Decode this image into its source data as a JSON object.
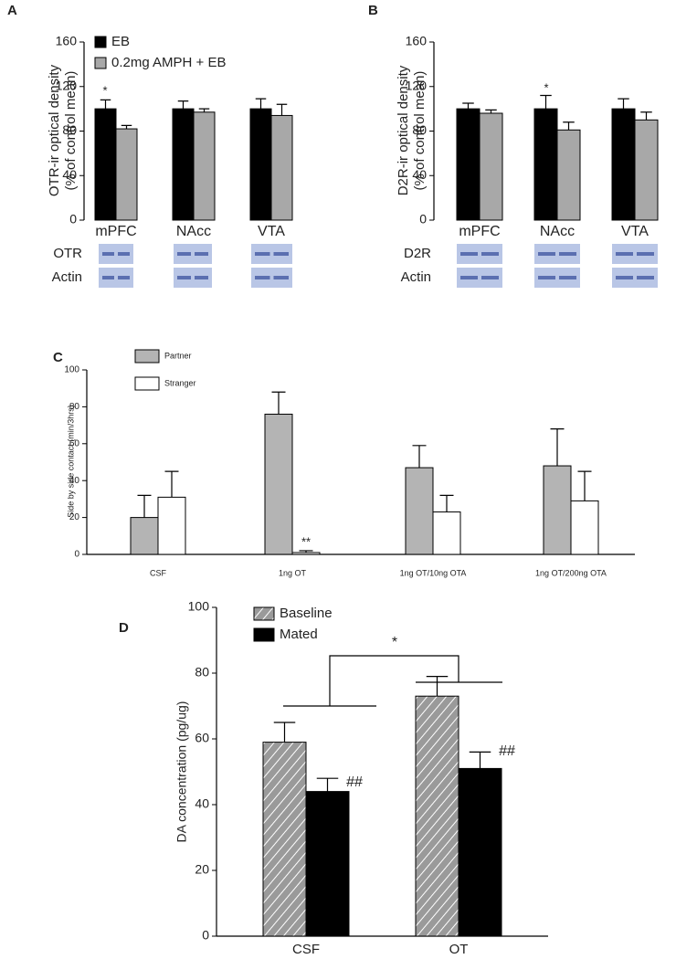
{
  "chart_data": [
    {
      "type": "bar",
      "label": "A",
      "ylabel": [
        "OTR-ir optical density",
        "(% of control mean)"
      ],
      "categories": [
        "mPFC",
        "NAcc",
        "VTA"
      ],
      "series": [
        {
          "name": "EB",
          "color": "#000000",
          "values": [
            100,
            100,
            100
          ],
          "errors": [
            8,
            7,
            9
          ]
        },
        {
          "name": "0.2mg AMPH + EB",
          "color": "#a8a8a8",
          "values": [
            82,
            97,
            94
          ],
          "errors": [
            3,
            3,
            10
          ]
        }
      ],
      "ylim": [
        0,
        160
      ],
      "yticks": [
        0,
        40,
        80,
        120,
        160
      ],
      "annotations": [
        "*"
      ],
      "blot_labels": [
        "OTR",
        "Actin"
      ]
    },
    {
      "type": "bar",
      "label": "B",
      "ylabel": [
        "D2R-ir optical density",
        "(% of control mean)"
      ],
      "categories": [
        "mPFC",
        "NAcc",
        "VTA"
      ],
      "series": [
        {
          "color": "#000000",
          "values": [
            100,
            100,
            100
          ],
          "errors": [
            5,
            12,
            9
          ]
        },
        {
          "color": "#a8a8a8",
          "values": [
            96,
            81,
            90
          ],
          "errors": [
            3,
            7,
            7
          ]
        }
      ],
      "ylim": [
        0,
        160
      ],
      "yticks": [
        0,
        40,
        80,
        120,
        160
      ],
      "annotations": [
        "*"
      ],
      "blot_labels": [
        "D2R",
        "Actin"
      ]
    },
    {
      "type": "bar",
      "label": "C",
      "ylabel": [
        "Side by side contact (min/3hrs)"
      ],
      "categories": [
        "CSF",
        "1ng OT",
        "1ng OT/10ng OTA",
        "1ng OT/200ng OTA"
      ],
      "series": [
        {
          "name": "Partner",
          "color": "#b4b4b4",
          "values": [
            20,
            76,
            47,
            48
          ],
          "errors": [
            12,
            12,
            12,
            20
          ]
        },
        {
          "name": "Stranger",
          "color": "#ffffff",
          "values": [
            31,
            1,
            23,
            29
          ],
          "errors": [
            14,
            1,
            9,
            16
          ]
        }
      ],
      "ylim": [
        0,
        100
      ],
      "yticks": [
        0,
        20,
        40,
        60,
        80,
        100
      ],
      "annotations": [
        "**"
      ]
    },
    {
      "type": "bar",
      "label": "D",
      "ylabel": [
        "DA concentration (pg/ug)"
      ],
      "categories": [
        "CSF",
        "OT"
      ],
      "series": [
        {
          "name": "Baseline",
          "color": "#9a9a9a",
          "hatch": true,
          "values": [
            59,
            73
          ],
          "errors": [
            6,
            6
          ]
        },
        {
          "name": "Mated",
          "color": "#000000",
          "values": [
            44,
            51
          ],
          "errors": [
            4,
            5
          ]
        }
      ],
      "ylim": [
        0,
        100
      ],
      "yticks": [
        0,
        20,
        40,
        60,
        80,
        100
      ],
      "annotations": [
        "##",
        "##",
        "*"
      ]
    }
  ]
}
